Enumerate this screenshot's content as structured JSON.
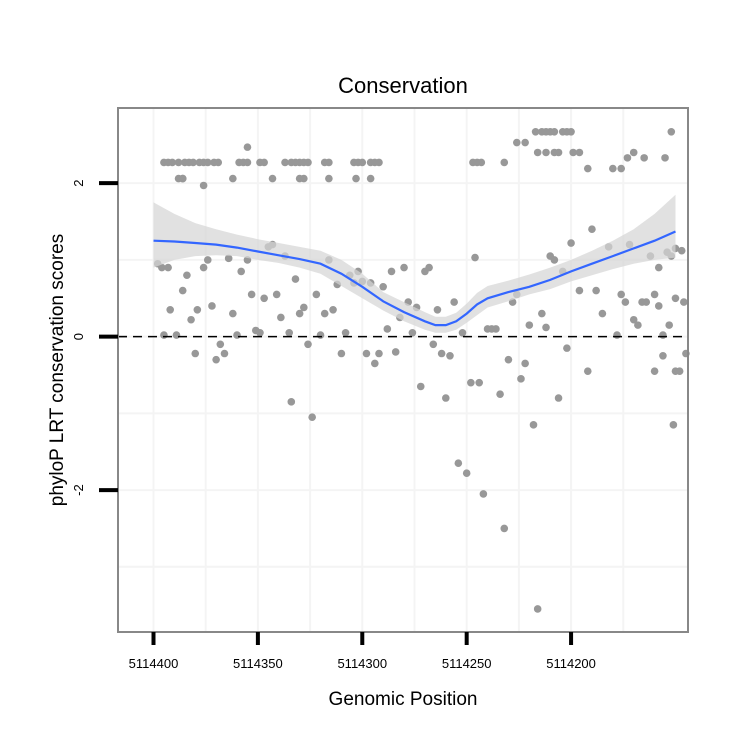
{
  "chart_data": {
    "type": "scatter",
    "title": "Conservation",
    "xlabel": "Genomic Position",
    "ylabel": "phyloP LRT conservation scores",
    "x_reversed": true,
    "xlim": [
      5114417,
      5114144
    ],
    "ylim": [
      -3.85,
      2.98
    ],
    "x_ticks": [
      5114400,
      5114350,
      5114300,
      5114250,
      5114200
    ],
    "x_tick_labels": [
      "5114400",
      "5114350",
      "5114300",
      "5114250",
      "5114200"
    ],
    "y_ticks": [
      -2,
      0,
      2
    ],
    "y_tick_labels": [
      "-2",
      "0",
      "2"
    ],
    "reference_line": {
      "y": 0,
      "style": "dashed",
      "color": "#000000"
    },
    "colors": {
      "points": "#989898",
      "smooth": "#3366ff",
      "ribbon": "#d6d6d6",
      "grid": "#f4f4f4",
      "frame": "#888888"
    },
    "smooth": {
      "x": [
        5114400,
        5114390,
        5114380,
        5114370,
        5114360,
        5114350,
        5114340,
        5114330,
        5114320,
        5114310,
        5114300,
        5114290,
        5114280,
        5114270,
        5114265,
        5114260,
        5114255,
        5114250,
        5114245,
        5114240,
        5114230,
        5114220,
        5114210,
        5114200,
        5114190,
        5114180,
        5114170,
        5114160,
        5114150
      ],
      "y": [
        1.25,
        1.24,
        1.22,
        1.2,
        1.16,
        1.11,
        1.06,
        1.01,
        0.95,
        0.82,
        0.65,
        0.46,
        0.32,
        0.2,
        0.15,
        0.15,
        0.2,
        0.3,
        0.42,
        0.5,
        0.58,
        0.65,
        0.74,
        0.85,
        0.95,
        1.05,
        1.15,
        1.25,
        1.37
      ],
      "lower": [
        0.9,
        1.0,
        1.05,
        1.06,
        1.05,
        1.0,
        0.96,
        0.9,
        0.82,
        0.66,
        0.5,
        0.34,
        0.2,
        0.09,
        0.05,
        0.05,
        0.09,
        0.18,
        0.28,
        0.38,
        0.46,
        0.55,
        0.62,
        0.72,
        0.8,
        0.88,
        0.95,
        1.0,
        1.03
      ],
      "upper": [
        1.75,
        1.6,
        1.48,
        1.4,
        1.33,
        1.27,
        1.22,
        1.17,
        1.12,
        1.0,
        0.82,
        0.58,
        0.45,
        0.32,
        0.26,
        0.26,
        0.31,
        0.43,
        0.57,
        0.66,
        0.73,
        0.81,
        0.9,
        1.0,
        1.12,
        1.25,
        1.4,
        1.6,
        1.85
      ]
    },
    "points": [
      [
        5114395,
        2.27
      ],
      [
        5114393,
        2.27
      ],
      [
        5114391,
        2.27
      ],
      [
        5114388,
        2.27
      ],
      [
        5114386,
        2.06
      ],
      [
        5114385,
        2.27
      ],
      [
        5114383,
        2.27
      ],
      [
        5114381,
        2.27
      ],
      [
        5114378,
        2.27
      ],
      [
        5114376,
        2.27
      ],
      [
        5114374,
        2.27
      ],
      [
        5114371,
        2.27
      ],
      [
        5114369,
        2.27
      ],
      [
        5114359,
        2.27
      ],
      [
        5114357,
        2.27
      ],
      [
        5114355,
        2.47
      ],
      [
        5114349,
        2.27
      ],
      [
        5114347,
        2.27
      ],
      [
        5114337,
        2.27
      ],
      [
        5114334,
        2.27
      ],
      [
        5114332,
        2.27
      ],
      [
        5114330,
        2.27
      ],
      [
        5114328,
        2.27
      ],
      [
        5114326,
        2.27
      ],
      [
        5114318,
        2.27
      ],
      [
        5114316,
        2.27
      ],
      [
        5114304,
        2.27
      ],
      [
        5114302,
        2.27
      ],
      [
        5114300,
        2.27
      ],
      [
        5114296,
        2.27
      ],
      [
        5114294,
        2.27
      ],
      [
        5114292,
        2.27
      ],
      [
        5114388,
        2.06
      ],
      [
        5114386,
        2.06
      ],
      [
        5114376,
        1.97
      ],
      [
        5114362,
        2.06
      ],
      [
        5114355,
        2.27
      ],
      [
        5114343,
        2.06
      ],
      [
        5114330,
        2.06
      ],
      [
        5114328,
        2.06
      ],
      [
        5114316,
        2.06
      ],
      [
        5114303,
        2.06
      ],
      [
        5114296,
        2.06
      ],
      [
        5114247,
        2.27
      ],
      [
        5114245,
        2.27
      ],
      [
        5114243,
        2.27
      ],
      [
        5114232,
        2.27
      ],
      [
        5114226,
        2.53
      ],
      [
        5114222,
        2.53
      ],
      [
        5114217,
        2.67
      ],
      [
        5114214,
        2.67
      ],
      [
        5114212,
        2.67
      ],
      [
        5114210,
        2.67
      ],
      [
        5114208,
        2.67
      ],
      [
        5114204,
        2.67
      ],
      [
        5114202,
        2.67
      ],
      [
        5114200,
        2.67
      ],
      [
        5114216,
        2.4
      ],
      [
        5114212,
        2.4
      ],
      [
        5114208,
        2.4
      ],
      [
        5114206,
        2.4
      ],
      [
        5114199,
        2.4
      ],
      [
        5114196,
        2.4
      ],
      [
        5114192,
        2.19
      ],
      [
        5114180,
        2.19
      ],
      [
        5114176,
        2.19
      ],
      [
        5114173,
        2.33
      ],
      [
        5114170,
        2.4
      ],
      [
        5114165,
        2.33
      ],
      [
        5114155,
        2.33
      ],
      [
        5114152,
        2.67
      ],
      [
        5114398,
        0.95
      ],
      [
        5114396,
        0.9
      ],
      [
        5114395,
        0.02
      ],
      [
        5114393,
        0.9
      ],
      [
        5114392,
        0.35
      ],
      [
        5114389,
        0.02
      ],
      [
        5114386,
        0.6
      ],
      [
        5114384,
        0.8
      ],
      [
        5114382,
        0.22
      ],
      [
        5114380,
        -0.22
      ],
      [
        5114379,
        0.35
      ],
      [
        5114376,
        0.9
      ],
      [
        5114374,
        1.0
      ],
      [
        5114372,
        0.4
      ],
      [
        5114370,
        -0.3
      ],
      [
        5114368,
        -0.1
      ],
      [
        5114366,
        -0.22
      ],
      [
        5114364,
        1.02
      ],
      [
        5114362,
        0.3
      ],
      [
        5114360,
        0.02
      ],
      [
        5114358,
        0.85
      ],
      [
        5114355,
        1.0
      ],
      [
        5114353,
        0.55
      ],
      [
        5114351,
        0.08
      ],
      [
        5114349,
        0.05
      ],
      [
        5114347,
        0.5
      ],
      [
        5114345,
        1.17
      ],
      [
        5114343,
        1.2
      ],
      [
        5114341,
        0.55
      ],
      [
        5114339,
        0.25
      ],
      [
        5114337,
        1.05
      ],
      [
        5114335,
        0.05
      ],
      [
        5114334,
        -0.85
      ],
      [
        5114332,
        0.75
      ],
      [
        5114330,
        0.3
      ],
      [
        5114328,
        0.38
      ],
      [
        5114326,
        -0.1
      ],
      [
        5114324,
        -1.05
      ],
      [
        5114322,
        0.55
      ],
      [
        5114320,
        0.02
      ],
      [
        5114318,
        0.3
      ],
      [
        5114316,
        1.0
      ],
      [
        5114314,
        0.35
      ],
      [
        5114312,
        0.68
      ],
      [
        5114310,
        -0.22
      ],
      [
        5114308,
        0.05
      ],
      [
        5114306,
        0.8
      ],
      [
        5114304,
        0.7
      ],
      [
        5114302,
        0.85
      ],
      [
        5114300,
        0.72
      ],
      [
        5114298,
        -0.22
      ],
      [
        5114296,
        0.7
      ],
      [
        5114294,
        -0.35
      ],
      [
        5114292,
        -0.22
      ],
      [
        5114290,
        0.65
      ],
      [
        5114288,
        0.1
      ],
      [
        5114286,
        0.85
      ],
      [
        5114284,
        -0.2
      ],
      [
        5114282,
        0.25
      ],
      [
        5114280,
        0.9
      ],
      [
        5114278,
        0.45
      ],
      [
        5114276,
        0.05
      ],
      [
        5114274,
        0.38
      ],
      [
        5114272,
        -0.65
      ],
      [
        5114270,
        0.85
      ],
      [
        5114268,
        0.9
      ],
      [
        5114266,
        -0.1
      ],
      [
        5114264,
        0.35
      ],
      [
        5114262,
        -0.22
      ],
      [
        5114260,
        -0.8
      ],
      [
        5114258,
        -0.25
      ],
      [
        5114256,
        0.45
      ],
      [
        5114254,
        -1.65
      ],
      [
        5114252,
        0.05
      ],
      [
        5114250,
        -1.78
      ],
      [
        5114248,
        -0.6
      ],
      [
        5114246,
        1.03
      ],
      [
        5114244,
        -0.6
      ],
      [
        5114242,
        -2.05
      ],
      [
        5114240,
        0.1
      ],
      [
        5114238,
        0.1
      ],
      [
        5114236,
        0.1
      ],
      [
        5114234,
        -0.75
      ],
      [
        5114232,
        -2.5
      ],
      [
        5114230,
        -0.3
      ],
      [
        5114228,
        0.45
      ],
      [
        5114226,
        0.55
      ],
      [
        5114224,
        -0.55
      ],
      [
        5114222,
        -0.35
      ],
      [
        5114220,
        0.15
      ],
      [
        5114218,
        -1.15
      ],
      [
        5114216,
        -3.55
      ],
      [
        5114214,
        0.3
      ],
      [
        5114212,
        0.12
      ],
      [
        5114210,
        1.05
      ],
      [
        5114208,
        1.0
      ],
      [
        5114206,
        -0.8
      ],
      [
        5114204,
        0.85
      ],
      [
        5114202,
        -0.15
      ],
      [
        5114200,
        1.22
      ],
      [
        5114196,
        0.6
      ],
      [
        5114192,
        -0.45
      ],
      [
        5114190,
        1.4
      ],
      [
        5114188,
        0.6
      ],
      [
        5114185,
        0.3
      ],
      [
        5114182,
        1.17
      ],
      [
        5114178,
        0.02
      ],
      [
        5114176,
        0.55
      ],
      [
        5114174,
        0.45
      ],
      [
        5114172,
        1.2
      ],
      [
        5114170,
        0.22
      ],
      [
        5114168,
        0.15
      ],
      [
        5114166,
        0.45
      ],
      [
        5114164,
        0.45
      ],
      [
        5114162,
        1.05
      ],
      [
        5114160,
        -0.45
      ],
      [
        5114158,
        0.9
      ],
      [
        5114156,
        0.02
      ],
      [
        5114154,
        1.1
      ],
      [
        5114152,
        1.05
      ],
      [
        5114150,
        -0.45
      ],
      [
        5114148,
        -0.45
      ],
      [
        5114160,
        0.55
      ],
      [
        5114158,
        0.4
      ],
      [
        5114156,
        -0.25
      ],
      [
        5114153,
        0.15
      ],
      [
        5114150,
        1.15
      ],
      [
        5114147,
        1.12
      ],
      [
        5114145,
        -0.22
      ],
      [
        5114146,
        0.45
      ],
      [
        5114151,
        -1.15
      ],
      [
        5114150,
        0.5
      ]
    ]
  }
}
